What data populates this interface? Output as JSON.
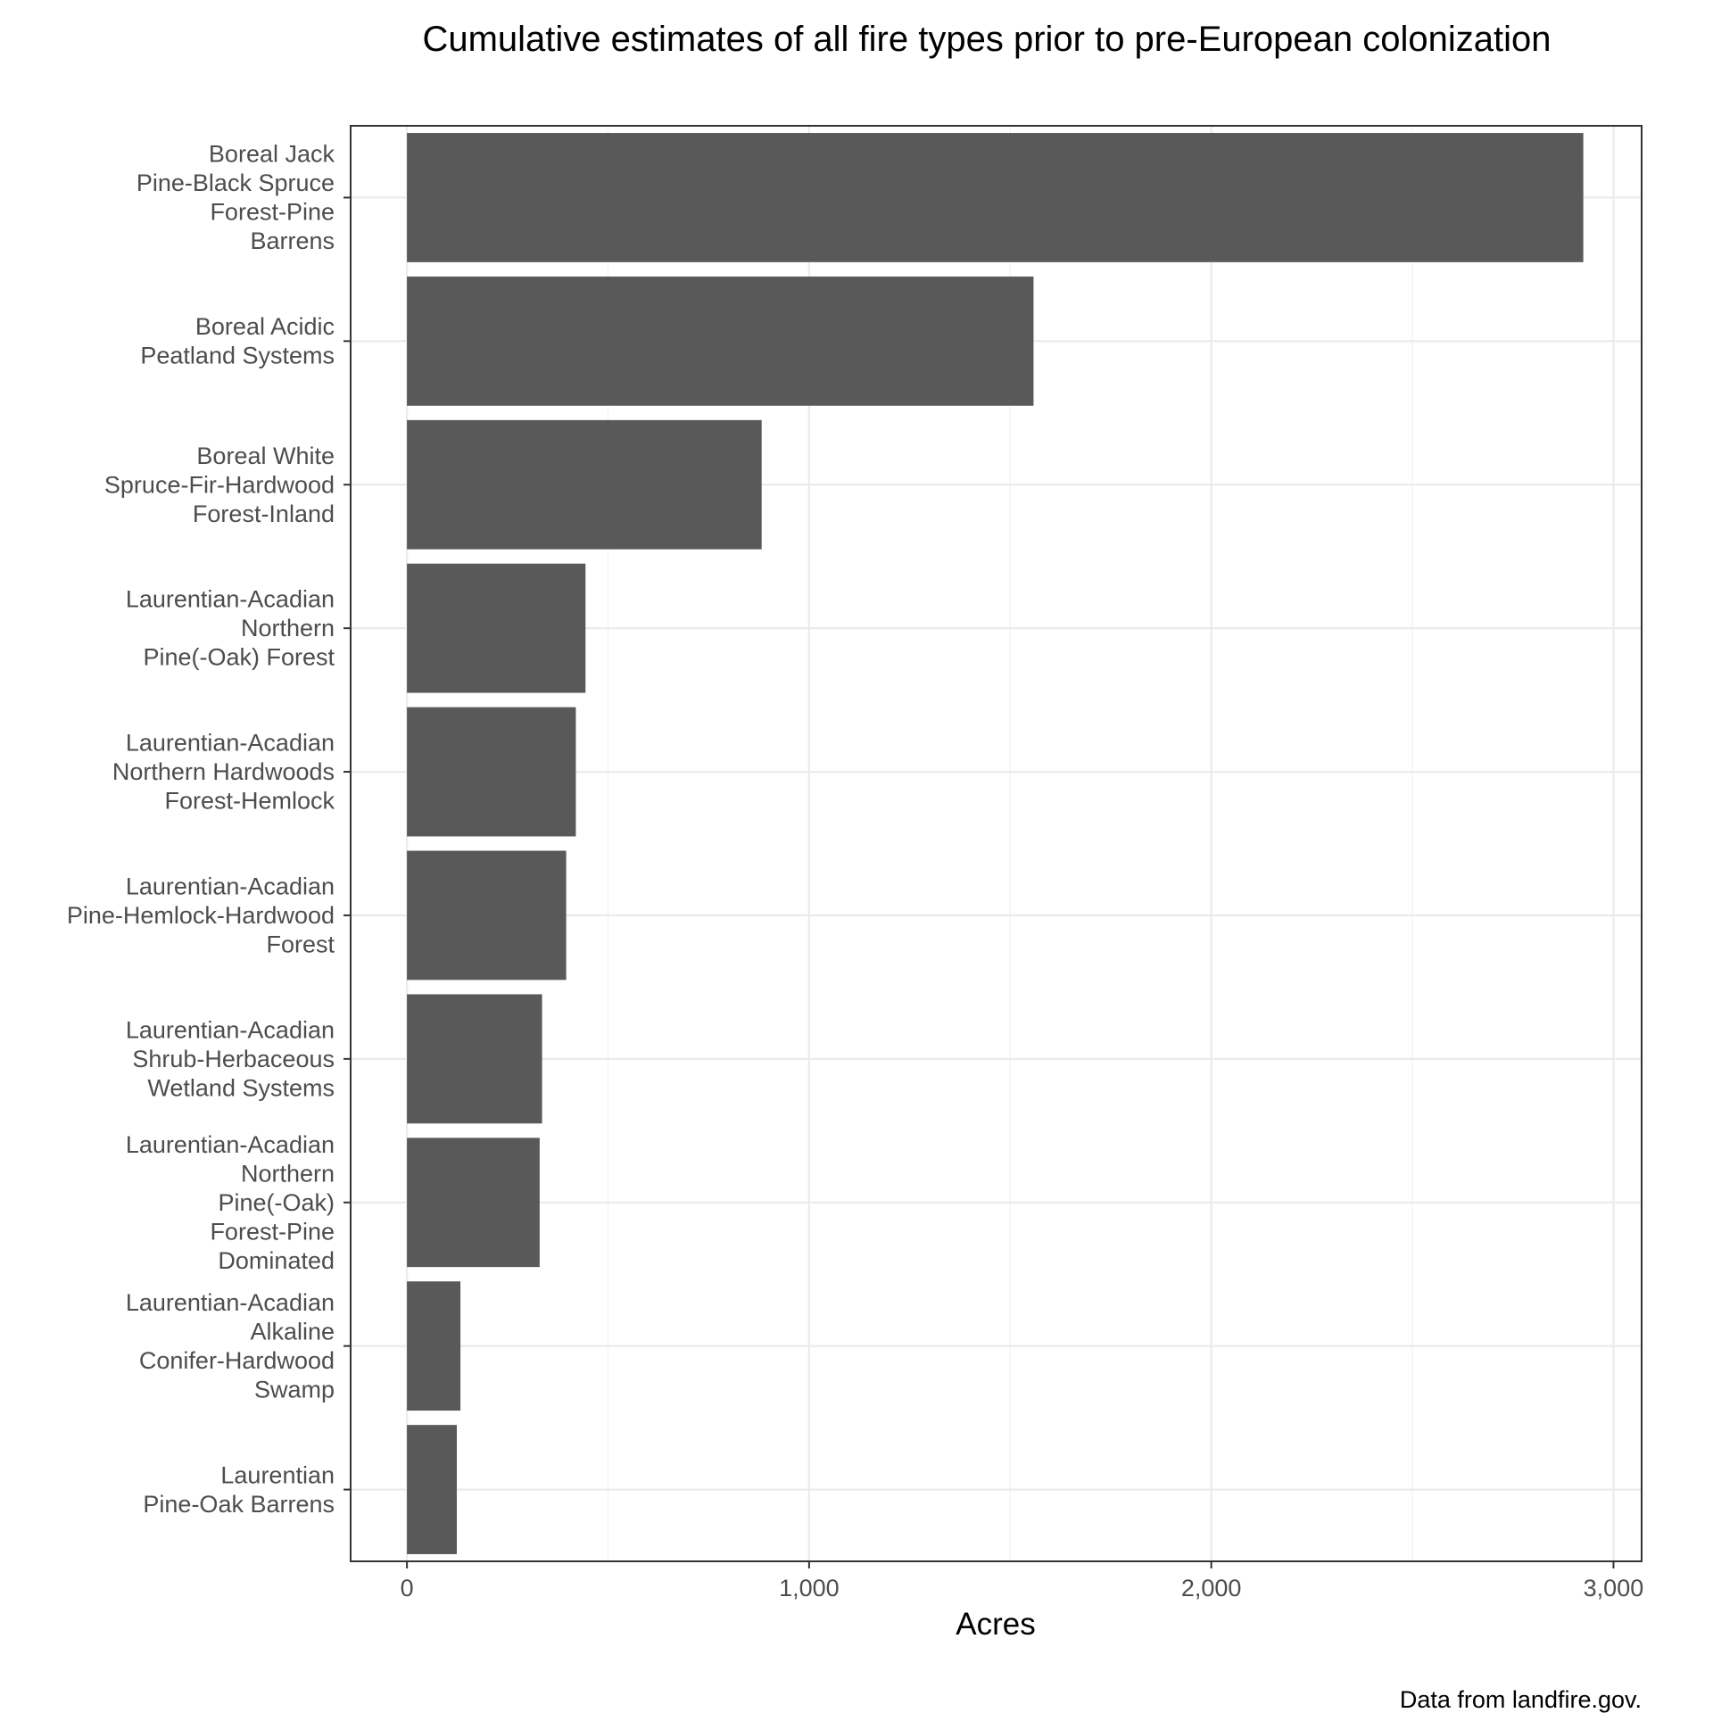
{
  "chart_data": {
    "type": "bar",
    "orientation": "horizontal",
    "title": "Cumulative estimates of all fire types prior to pre-European colonization",
    "xlabel": "Acres",
    "ylabel": "",
    "caption": "Data from landfire.gov.",
    "xlim": [
      -140,
      3070
    ],
    "xticks": [
      0,
      1000,
      2000,
      3000
    ],
    "xtick_labels": [
      "0",
      "1,000",
      "2,000",
      "3,000"
    ],
    "grid": true,
    "bar_color": "#595959",
    "categories": [
      [
        "Boreal Jack",
        "Pine-Black Spruce",
        "Forest-Pine",
        "Barrens"
      ],
      [
        "Boreal Acidic",
        "Peatland Systems"
      ],
      [
        "Boreal White",
        "Spruce-Fir-Hardwood",
        "Forest-Inland"
      ],
      [
        "Laurentian-Acadian",
        "Northern",
        "Pine(-Oak) Forest"
      ],
      [
        "Laurentian-Acadian",
        "Northern Hardwoods",
        "Forest-Hemlock"
      ],
      [
        "Laurentian-Acadian",
        "Pine-Hemlock-Hardwood",
        "Forest"
      ],
      [
        "Laurentian-Acadian",
        "Shrub-Herbaceous",
        "Wetland Systems"
      ],
      [
        "Laurentian-Acadian",
        "Northern",
        "Pine(-Oak)",
        "Forest-Pine",
        "Dominated"
      ],
      [
        "Laurentian-Acadian",
        "Alkaline",
        "Conifer-Hardwood",
        "Swamp"
      ],
      [
        "Laurentian",
        "Pine-Oak Barrens"
      ]
    ],
    "values": [
      2925,
      1558,
      882,
      444,
      420,
      396,
      336,
      330,
      133,
      124
    ]
  }
}
